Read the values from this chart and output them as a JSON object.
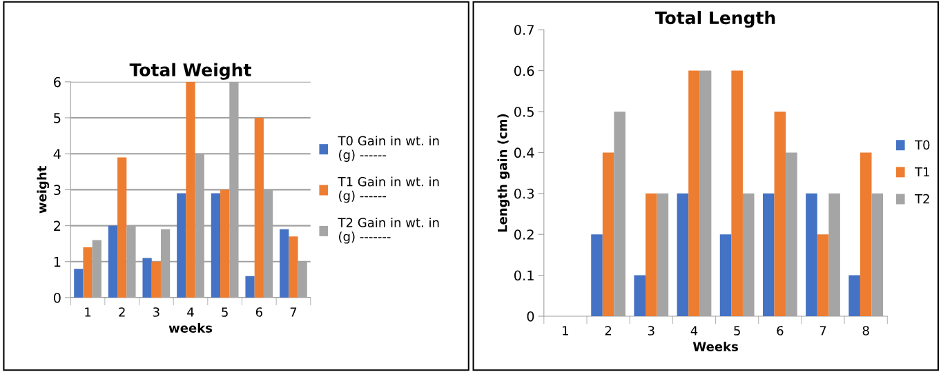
{
  "chart_data": [
    {
      "type": "bar",
      "title": "Total Weight",
      "xlabel": "weeks",
      "ylabel": "weight",
      "categories": [
        "1",
        "2",
        "3",
        "4",
        "5",
        "6",
        "7"
      ],
      "series": [
        {
          "name": "T0 Gain in wt. in\n(g) ------",
          "color": "#4472c4",
          "values": [
            0.8,
            2.0,
            1.1,
            2.9,
            2.9,
            0.6,
            1.9
          ]
        },
        {
          "name": "T1 Gain in wt. in\n(g) ------",
          "color": "#ed7d31",
          "values": [
            1.4,
            3.9,
            1.0,
            6.0,
            3.0,
            5.0,
            1.7
          ]
        },
        {
          "name": "T2 Gain in wt. in\n(g) -------",
          "color": "#a5a5a5",
          "values": [
            1.6,
            2.0,
            1.9,
            4.0,
            6.0,
            3.0,
            1.0
          ]
        }
      ],
      "ylim": [
        0,
        6
      ],
      "yticks": [
        0,
        1,
        2,
        3,
        4,
        5,
        6
      ],
      "grid": "y",
      "legend": "right"
    },
    {
      "type": "bar",
      "title": "Total Length",
      "xlabel": "Weeks",
      "ylabel": "Length gain (cm)",
      "categories": [
        "1",
        "2",
        "3",
        "4",
        "5",
        "6",
        "7",
        "8"
      ],
      "series": [
        {
          "name": "T0",
          "color": "#4472c4",
          "values": [
            0,
            0.2,
            0.1,
            0.3,
            0.2,
            0.3,
            0.3,
            0.1
          ]
        },
        {
          "name": "T1",
          "color": "#ed7d31",
          "values": [
            0,
            0.4,
            0.3,
            0.6,
            0.6,
            0.5,
            0.2,
            0.4
          ]
        },
        {
          "name": "T2",
          "color": "#a5a5a5",
          "values": [
            0,
            0.5,
            0.3,
            0.6,
            0.3,
            0.4,
            0.3,
            0.3
          ]
        }
      ],
      "ylim": [
        0,
        0.7
      ],
      "yticks": [
        0,
        0.1,
        0.2,
        0.3,
        0.4,
        0.5,
        0.6,
        0.7
      ],
      "legend": "right"
    }
  ]
}
